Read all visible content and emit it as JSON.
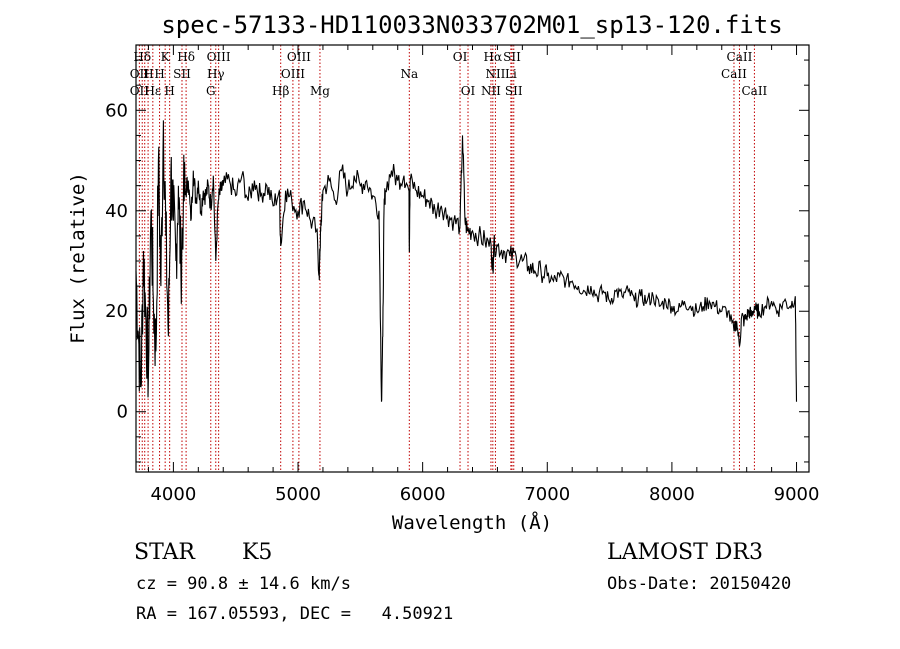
{
  "chart_data": {
    "type": "line",
    "title": "spec-57133-HD110033N033702M01_sp13-120.fits",
    "xlabel": "Wavelength (Å)",
    "ylabel": "Flux (relative)",
    "xlim": [
      3700,
      9100
    ],
    "ylim": [
      -12,
      73
    ],
    "xticks": [
      4000,
      5000,
      6000,
      7000,
      8000,
      9000
    ],
    "yticks": [
      0,
      20,
      40,
      60
    ],
    "grid": false,
    "series": [
      {
        "name": "flux",
        "x": [
          3700,
          3720,
          3740,
          3760,
          3780,
          3800,
          3820,
          3840,
          3860,
          3880,
          3900,
          3920,
          3940,
          3960,
          3980,
          4000,
          4020,
          4040,
          4060,
          4080,
          4100,
          4120,
          4140,
          4160,
          4180,
          4200,
          4220,
          4240,
          4260,
          4280,
          4300,
          4320,
          4340,
          4360,
          4380,
          4400,
          4450,
          4500,
          4550,
          4600,
          4650,
          4700,
          4750,
          4800,
          4850,
          4861,
          4900,
          4950,
          5000,
          5050,
          5100,
          5150,
          5170,
          5176,
          5182,
          5190,
          5200,
          5250,
          5300,
          5350,
          5400,
          5450,
          5500,
          5550,
          5600,
          5650,
          5670,
          5680,
          5690,
          5700,
          5750,
          5800,
          5850,
          5890,
          5893,
          5896,
          5900,
          5950,
          6000,
          6050,
          6100,
          6150,
          6200,
          6250,
          6300,
          6320,
          6340,
          6360,
          6400,
          6450,
          6500,
          6550,
          6563,
          6570,
          6600,
          6650,
          6700,
          6750,
          6800,
          6850,
          6900,
          6950,
          7000,
          7050,
          7100,
          7150,
          7200,
          7250,
          7300,
          7350,
          7400,
          7450,
          7500,
          7550,
          7600,
          7650,
          7700,
          7750,
          7800,
          7850,
          7900,
          7950,
          8000,
          8050,
          8100,
          8150,
          8200,
          8250,
          8300,
          8350,
          8400,
          8450,
          8498,
          8520,
          8542,
          8560,
          8580,
          8600,
          8620,
          8640,
          8662,
          8680,
          8700,
          8750,
          8800,
          8850,
          8900,
          8950,
          8990,
          9000
        ],
        "values": [
          28,
          15,
          5,
          32,
          18,
          8,
          40,
          22,
          12,
          50,
          25,
          58,
          35,
          15,
          48,
          38,
          30,
          45,
          28,
          42,
          44,
          46,
          38,
          48,
          42,
          46,
          40,
          44,
          43,
          45,
          41,
          47,
          30,
          42,
          44,
          45,
          46,
          43,
          47,
          42,
          46,
          43,
          45,
          41,
          44,
          33,
          44,
          42,
          40,
          42,
          38,
          36,
          27,
          32,
          36,
          40,
          44,
          46,
          42,
          48,
          44,
          47,
          45,
          46,
          43,
          40,
          2,
          15,
          40,
          44,
          48,
          46,
          47,
          44,
          32,
          40,
          46,
          44,
          43,
          42,
          40,
          41,
          39,
          38,
          37,
          55,
          38,
          36,
          36,
          35,
          34,
          33,
          28,
          33,
          33,
          32,
          31,
          31,
          30,
          29,
          28,
          28,
          27,
          26,
          27,
          26,
          26,
          25,
          24,
          25,
          23,
          24,
          22,
          24,
          23,
          24,
          22,
          23,
          22,
          23,
          21,
          22,
          21,
          20,
          22,
          21,
          20,
          21,
          22,
          21,
          20,
          20,
          16,
          18,
          13,
          19,
          18,
          19,
          20,
          19,
          21,
          20,
          20,
          21,
          22,
          20,
          22,
          21,
          23,
          2
        ]
      }
    ],
    "line_markers": {
      "upper": [
        {
          "label": "Hδ",
          "x": 3750,
          "row": 1
        },
        {
          "label": "K",
          "x": 3934,
          "row": 1
        },
        {
          "label": "Hδ",
          "x": 4102,
          "row": 1
        },
        {
          "label": "OIII",
          "x": 4363,
          "row": 1
        },
        {
          "label": "OIII",
          "x": 5007,
          "row": 1
        },
        {
          "label": "OI",
          "x": 6300,
          "row": 1
        },
        {
          "label": "Hα",
          "x": 6563,
          "row": 1
        },
        {
          "label": "SII",
          "x": 6717,
          "row": 1
        },
        {
          "label": "CaII",
          "x": 8542,
          "row": 1
        },
        {
          "label": "OII",
          "x": 3727,
          "row": 2
        },
        {
          "label": "H",
          "x": 3800,
          "row": 2
        },
        {
          "label": "H",
          "x": 3889,
          "row": 2
        },
        {
          "label": "SII",
          "x": 4069,
          "row": 2
        },
        {
          "label": "Hγ",
          "x": 4340,
          "row": 2
        },
        {
          "label": "OIII",
          "x": 4959,
          "row": 2
        },
        {
          "label": "Na",
          "x": 5893,
          "row": 2
        },
        {
          "label": "NII",
          "x": 6584,
          "row": 2
        },
        {
          "label": "Li",
          "x": 6708,
          "row": 2
        },
        {
          "label": "CaII",
          "x": 8498,
          "row": 2
        },
        {
          "label": "OII",
          "x": 3727,
          "row": 3
        },
        {
          "label": "Hε",
          "x": 3835,
          "row": 3
        },
        {
          "label": "H",
          "x": 3970,
          "row": 3
        },
        {
          "label": "G",
          "x": 4300,
          "row": 3
        },
        {
          "label": "Hβ",
          "x": 4861,
          "row": 3
        },
        {
          "label": "Mg",
          "x": 5176,
          "row": 3
        },
        {
          "label": "OI",
          "x": 6364,
          "row": 3
        },
        {
          "label": "NII",
          "x": 6548,
          "row": 3
        },
        {
          "label": "SII",
          "x": 6731,
          "row": 3
        },
        {
          "label": "CaII",
          "x": 8662,
          "row": 3
        }
      ],
      "line_positions": [
        3727,
        3750,
        3770,
        3797,
        3835,
        3889,
        3934,
        3970,
        4069,
        4102,
        4300,
        4340,
        4363,
        4861,
        4959,
        5007,
        5176,
        5893,
        6300,
        6364,
        6548,
        6563,
        6584,
        6708,
        6717,
        6731,
        8498,
        8542,
        8662
      ]
    }
  },
  "info": {
    "object_class": "STAR",
    "subclass": "K5",
    "survey": "LAMOST DR3",
    "cz": "cz = 90.8 ± 14.6 km/s",
    "obs_date": "Obs-Date: 20150420",
    "coords": "RA = 167.05593, DEC =   4.50921"
  },
  "colors": {
    "spectrum": "#000000",
    "marker": "#c00000",
    "background": "#ffffff"
  }
}
